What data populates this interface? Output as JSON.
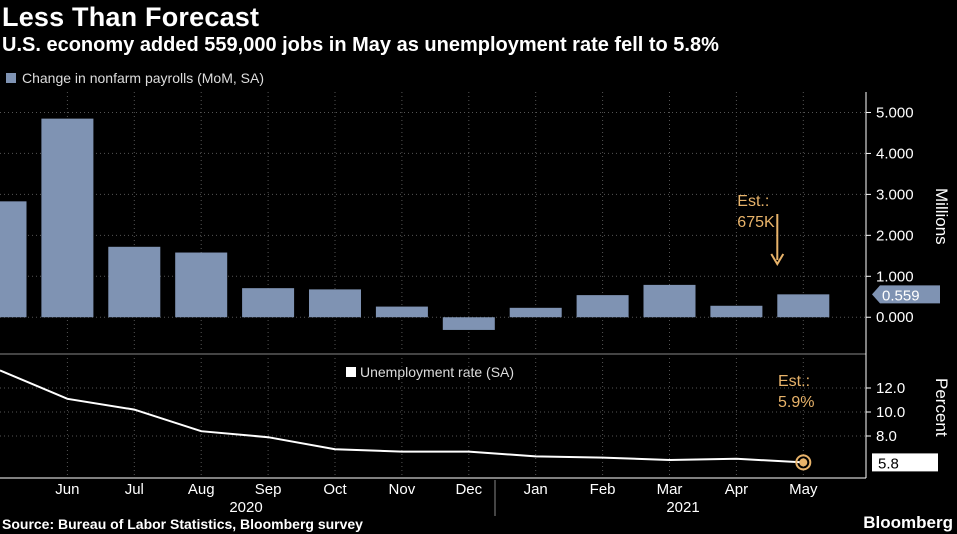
{
  "title": "Less Than Forecast",
  "subtitle": "U.S. economy added 559,000 jobs in May as unemployment rate fell to 5.8%",
  "source": "Source: Bureau of Labor Statistics, Bloomberg survey",
  "brand": "Bloomberg",
  "colors": {
    "bar": "#7f93b3",
    "line": "#ffffff",
    "annotation": "#e8b36a",
    "grid": "#555555"
  },
  "chart_data": [
    {
      "type": "bar",
      "legend": "Change in nonfarm payrolls (MoM, SA)",
      "legend_position": "top-left",
      "categories": [
        "May",
        "Jun",
        "Jul",
        "Aug",
        "Sep",
        "Oct",
        "Nov",
        "Dec",
        "Jan",
        "Feb",
        "Mar",
        "Apr",
        "May"
      ],
      "values": [
        2.83,
        4.85,
        1.72,
        1.58,
        0.71,
        0.68,
        0.26,
        -0.31,
        0.23,
        0.54,
        0.79,
        0.28,
        0.559
      ],
      "ylabel": "Millions",
      "ylim": [
        -0.8,
        5.5
      ],
      "yticks": [
        "0.000",
        "1.000",
        "2.000",
        "3.000",
        "4.000",
        "5.000"
      ],
      "last_value_label": "0.559",
      "annotation": {
        "text": [
          "Est.:",
          "675K"
        ],
        "value": 0.675
      },
      "grid": true
    },
    {
      "type": "line",
      "legend": "Unemployment rate (SA)",
      "legend_position": "top-center",
      "x": [
        "May",
        "Jun",
        "Jul",
        "Aug",
        "Sep",
        "Oct",
        "Nov",
        "Dec",
        "Jan",
        "Feb",
        "Mar",
        "Apr",
        "May"
      ],
      "values": [
        13.3,
        11.1,
        10.2,
        8.4,
        7.9,
        6.9,
        6.7,
        6.7,
        6.3,
        6.2,
        6.0,
        6.1,
        5.8
      ],
      "ylabel": "Percent",
      "ylim": [
        4.5,
        14.5
      ],
      "yticks": [
        "8.0",
        "10.0",
        "12.0"
      ],
      "last_value_label": "5.8",
      "annotation": {
        "text": [
          "Est.:",
          "5.9%"
        ],
        "value": 5.9
      },
      "grid": true
    }
  ],
  "x_axis": {
    "months": [
      "Jun",
      "Jul",
      "Aug",
      "Sep",
      "Oct",
      "Nov",
      "Dec",
      "Jan",
      "Feb",
      "Mar",
      "Apr",
      "May"
    ],
    "years": [
      "2020",
      "2021"
    ]
  }
}
